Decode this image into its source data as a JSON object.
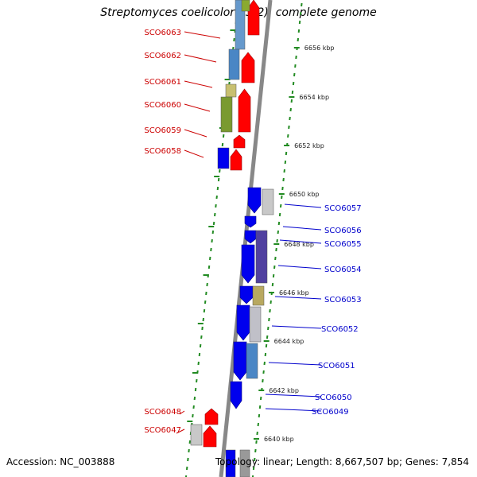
{
  "title": "Streptomyces coelicolor A3(2), complete genome",
  "footer": {
    "accession": "Accession: NC_003888",
    "stats": "Topology: linear; Length: 8,667,507 bp; Genes: 7,854"
  },
  "colors": {
    "forward_strand": "#ff0000",
    "reverse_strand": "#0000ee",
    "label_forward": "#cc0000",
    "label_reverse": "#0000cc",
    "backbone": "#888888",
    "tick_marks": "#228b22"
  },
  "kbp_ticks": [
    "6656 kbp",
    "6654 kbp",
    "6652 kbp",
    "6650 kbp",
    "6648 kbp",
    "6646 kbp",
    "6644 kbp",
    "6642 kbp",
    "6640 kbp"
  ],
  "genes_forward": [
    "SCO6063",
    "SCO6062",
    "SCO6061",
    "SCO6060",
    "SCO6059",
    "SCO6058",
    "SCO6048",
    "SCO6047"
  ],
  "genes_reverse": [
    "SCO6057",
    "SCO6056",
    "SCO6055",
    "SCO6054",
    "SCO6053",
    "SCO6052",
    "SCO6051",
    "SCO6050",
    "SCO6049"
  ]
}
